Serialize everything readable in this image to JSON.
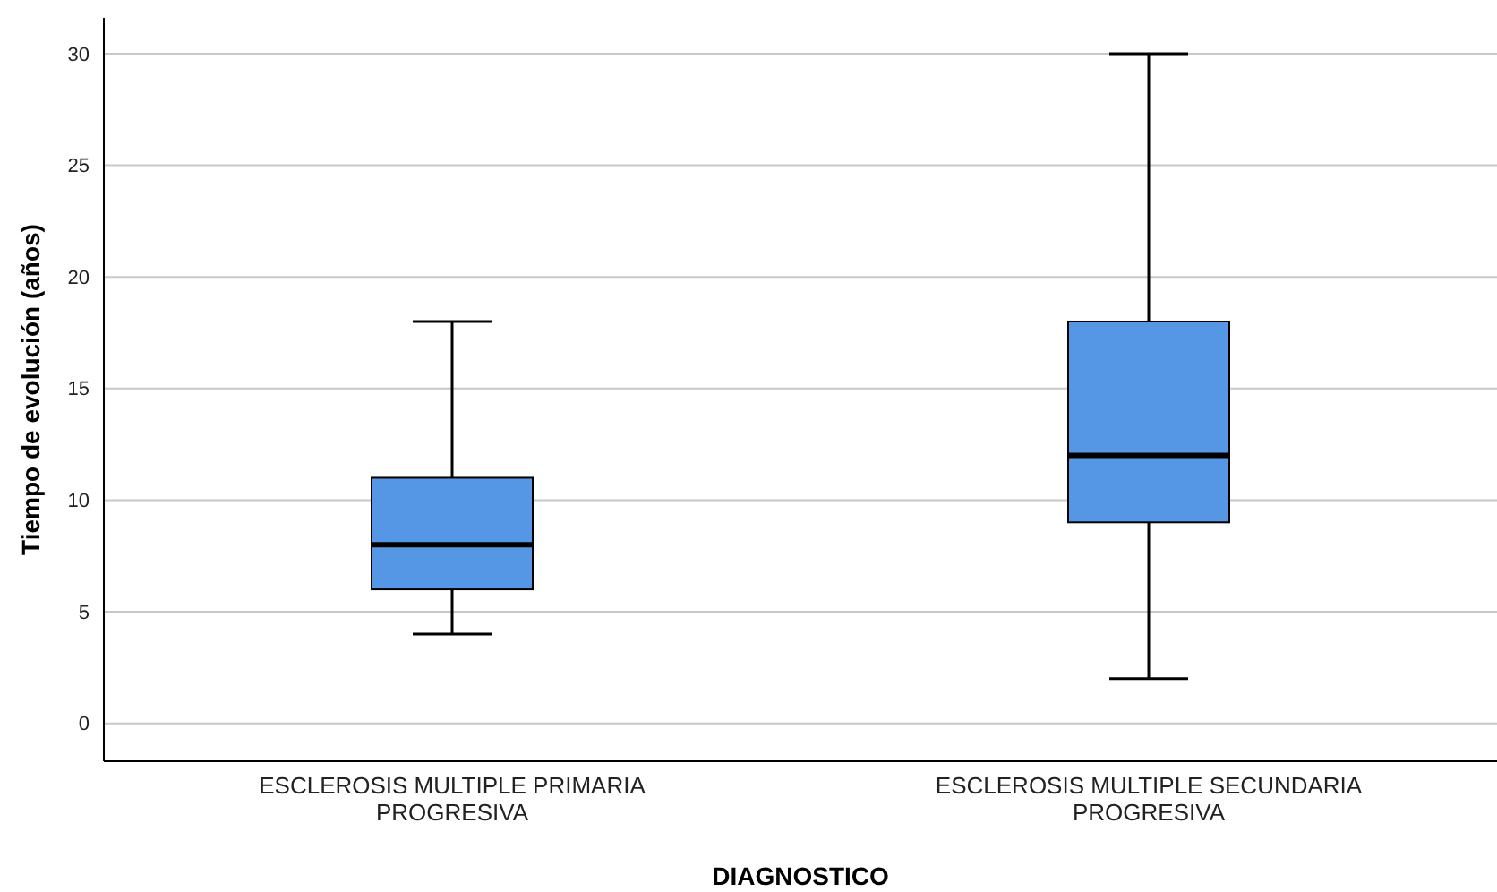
{
  "chart_data": {
    "type": "box",
    "xlabel": "DIAGNOSTICO",
    "ylabel": "Tiempo de evolución (años)",
    "categories": [
      "ESCLEROSIS MULTIPLE PRIMARIA PROGRESIVA",
      "ESCLEROSIS MULTIPLE SECUNDARIA PROGRESIVA"
    ],
    "boxes": [
      {
        "low": 4,
        "q1": 6,
        "median": 8,
        "q3": 11,
        "high": 18
      },
      {
        "low": 2,
        "q1": 9,
        "median": 12,
        "q3": 18,
        "high": 30
      }
    ],
    "color": "#5597e4",
    "ylim": [
      -1.7,
      31.6
    ],
    "yticks": [
      0,
      5,
      10,
      15,
      20,
      25,
      30
    ],
    "grid": "y"
  }
}
